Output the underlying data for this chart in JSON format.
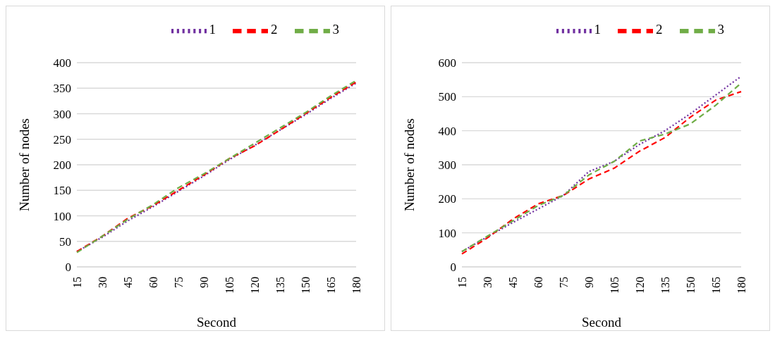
{
  "chart_data": [
    {
      "type": "line",
      "xlabel": "Second",
      "ylabel": "Number of nodes",
      "categories": [
        "15",
        "30",
        "45",
        "60",
        "75",
        "90",
        "105",
        "120",
        "135",
        "150",
        "165",
        "180"
      ],
      "ylim": [
        0,
        400
      ],
      "yticks": [
        0,
        50,
        100,
        150,
        200,
        250,
        300,
        350,
        400
      ],
      "grid": "y",
      "legend": "top right",
      "marker": "none",
      "series": [
        {
          "name": "1",
          "color": "#7030a0",
          "line_style": "dotted",
          "values": [
            30,
            58,
            90,
            118,
            148,
            178,
            210,
            238,
            268,
            298,
            330,
            360
          ]
        },
        {
          "name": "2",
          "color": "#ff0000",
          "line_style": "dashed",
          "values": [
            30,
            60,
            95,
            120,
            150,
            180,
            212,
            237,
            268,
            300,
            332,
            362
          ]
        },
        {
          "name": "3",
          "color": "#70ad47",
          "line_style": "dashed",
          "values": [
            28,
            60,
            93,
            122,
            155,
            182,
            212,
            242,
            272,
            302,
            335,
            365
          ]
        }
      ]
    },
    {
      "type": "line",
      "xlabel": "Second",
      "ylabel": "Number of nodes",
      "categories": [
        "15",
        "30",
        "45",
        "60",
        "75",
        "90",
        "105",
        "120",
        "135",
        "150",
        "165",
        "180"
      ],
      "ylim": [
        0,
        600
      ],
      "yticks": [
        0,
        100,
        200,
        300,
        400,
        500,
        600
      ],
      "grid": "y",
      "legend": "top right",
      "marker": "none",
      "series": [
        {
          "name": "1",
          "color": "#7030a0",
          "line_style": "dotted",
          "values": [
            45,
            88,
            130,
            170,
            210,
            280,
            310,
            360,
            400,
            450,
            505,
            560
          ]
        },
        {
          "name": "2",
          "color": "#ff0000",
          "line_style": "dashed",
          "values": [
            38,
            85,
            140,
            185,
            210,
            258,
            290,
            340,
            380,
            440,
            490,
            515
          ]
        },
        {
          "name": "3",
          "color": "#70ad47",
          "line_style": "dashed",
          "values": [
            45,
            90,
            135,
            180,
            210,
            270,
            310,
            370,
            390,
            420,
            475,
            540
          ]
        }
      ]
    }
  ]
}
